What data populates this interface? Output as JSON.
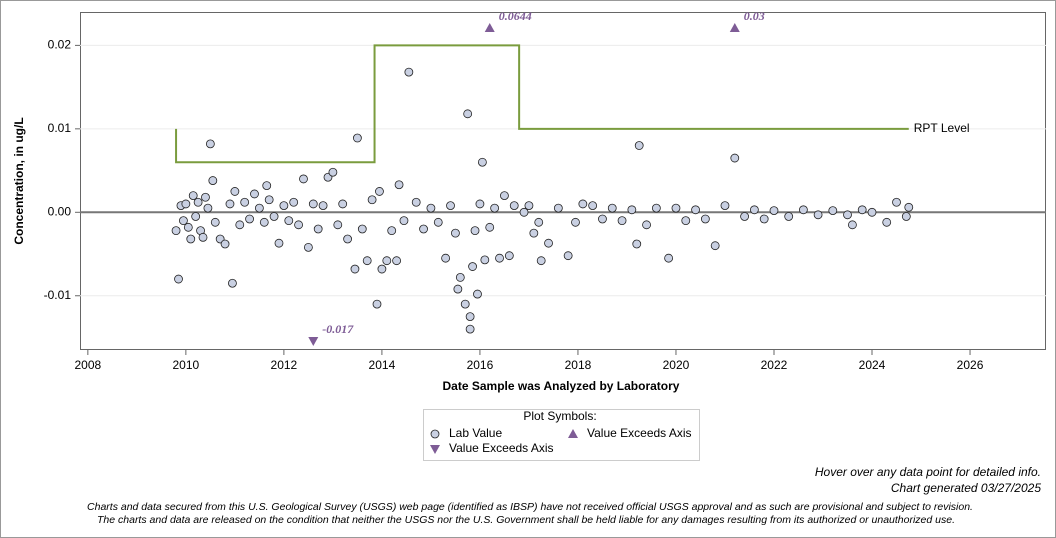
{
  "chart_data": {
    "type": "scatter",
    "y_label": "Concentration, in ug/L",
    "x_label": "Date Sample was Analyzed by Laboratory",
    "xlim": [
      2007.84,
      2027.55
    ],
    "xticks": [
      2008,
      2010,
      2012,
      2014,
      2016,
      2018,
      2020,
      2022,
      2024,
      2026
    ],
    "ylim": [
      -0.0165,
      0.024
    ],
    "yticks": [
      -0.01,
      {
        "value": 0,
        "label": "0.00"
      },
      0.01,
      0.02
    ],
    "grid": true,
    "legend_title": "Plot Symbols:",
    "series": [
      {
        "name": "Lab Value",
        "marker": "circle",
        "color": "#c9d0e2",
        "x": [
          2009.8,
          2009.85,
          2009.9,
          2009.95,
          2010.0,
          2010.05,
          2010.1,
          2010.15,
          2010.2,
          2010.25,
          2010.3,
          2010.35,
          2010.4,
          2010.45,
          2010.5,
          2010.55,
          2010.6,
          2010.7,
          2010.8,
          2010.9,
          2010.95,
          2011.0,
          2011.1,
          2011.2,
          2011.3,
          2011.4,
          2011.5,
          2011.6,
          2011.65,
          2011.7,
          2011.8,
          2011.9,
          2012.0,
          2012.1,
          2012.2,
          2012.3,
          2012.4,
          2012.5,
          2012.6,
          2012.7,
          2012.8,
          2012.9,
          2013.0,
          2013.1,
          2013.2,
          2013.3,
          2013.45,
          2013.5,
          2013.6,
          2013.7,
          2013.8,
          2013.9,
          2013.95,
          2014.0,
          2014.1,
          2014.2,
          2014.3,
          2014.35,
          2014.45,
          2014.55,
          2014.7,
          2014.85,
          2015.0,
          2015.15,
          2015.3,
          2015.4,
          2015.5,
          2015.55,
          2015.6,
          2015.7,
          2015.75,
          2015.8,
          2015.8,
          2015.85,
          2015.9,
          2015.95,
          2016.0,
          2016.05,
          2016.1,
          2016.2,
          2016.3,
          2016.4,
          2016.5,
          2016.6,
          2016.7,
          2016.9,
          2017.0,
          2017.1,
          2017.2,
          2017.25,
          2017.4,
          2017.6,
          2017.8,
          2017.95,
          2018.1,
          2018.3,
          2018.5,
          2018.7,
          2018.9,
          2019.1,
          2019.2,
          2019.25,
          2019.4,
          2019.6,
          2019.85,
          2020.0,
          2020.2,
          2020.4,
          2020.6,
          2020.8,
          2021.0,
          2021.2,
          2021.4,
          2021.6,
          2021.8,
          2022.0,
          2022.3,
          2022.6,
          2022.9,
          2023.2,
          2023.5,
          2023.6,
          2023.8,
          2024.0,
          2024.3,
          2024.5,
          2024.7,
          2024.75
        ],
        "values": [
          -0.0022,
          -0.008,
          0.0008,
          -0.001,
          0.001,
          -0.0018,
          -0.0032,
          0.002,
          -0.0005,
          0.0012,
          -0.0022,
          -0.003,
          0.0018,
          0.0005,
          0.0082,
          0.0038,
          -0.0012,
          -0.0032,
          -0.0038,
          0.001,
          -0.0085,
          0.0025,
          -0.0015,
          0.0012,
          -0.0008,
          0.0022,
          0.0005,
          -0.0012,
          0.0032,
          0.0015,
          -0.0005,
          -0.0037,
          0.0008,
          -0.001,
          0.0012,
          -0.0015,
          0.004,
          -0.0042,
          0.001,
          -0.002,
          0.0008,
          0.0042,
          0.0048,
          -0.0015,
          0.001,
          -0.0032,
          -0.0068,
          0.0089,
          -0.002,
          -0.0058,
          0.0015,
          -0.011,
          0.0025,
          -0.0068,
          -0.0058,
          -0.0022,
          -0.0058,
          0.0033,
          -0.001,
          0.0168,
          0.0012,
          -0.002,
          0.0005,
          -0.0012,
          -0.0055,
          0.0008,
          -0.0025,
          -0.0092,
          -0.0078,
          -0.011,
          0.0118,
          -0.014,
          -0.0125,
          -0.0065,
          -0.0022,
          -0.0098,
          0.001,
          0.006,
          -0.0057,
          -0.0018,
          0.0005,
          -0.0055,
          0.002,
          -0.0052,
          0.0008,
          0.0,
          0.0008,
          -0.0025,
          -0.0012,
          -0.0058,
          -0.0037,
          0.0005,
          -0.0052,
          -0.0012,
          0.001,
          0.0008,
          -0.0008,
          0.0005,
          -0.001,
          0.0003,
          -0.0038,
          0.008,
          -0.0015,
          0.0005,
          -0.0055,
          0.0005,
          -0.001,
          0.0003,
          -0.0008,
          -0.004,
          0.0008,
          0.0065,
          -0.0005,
          0.0003,
          -0.0008,
          0.0002,
          -0.0005,
          0.0003,
          -0.0003,
          0.0002,
          -0.0003,
          -0.0015,
          0.0003,
          0.0,
          -0.0012,
          0.0012,
          -0.0005,
          0.0006
        ]
      },
      {
        "name": "Value Exceeds Axis",
        "marker": "triangle-up",
        "color": "#7e5c96",
        "x": [
          2016.2,
          2021.2
        ],
        "values": [
          0.0644,
          0.03
        ],
        "value_labels": [
          "0.0644",
          "0.03"
        ]
      },
      {
        "name": "Value Exceeds Axis",
        "marker": "triangle-down",
        "color": "#7e5c96",
        "x": [
          2012.6
        ],
        "values": [
          -0.017
        ],
        "value_labels": [
          "-0.017"
        ]
      }
    ],
    "reference_line": {
      "name": "RPT Level",
      "color": "#7a9c3e",
      "x": [
        2009.8,
        2009.8,
        2013.85,
        2013.85,
        2016.8,
        2016.8,
        2024.75
      ],
      "values": [
        0.01,
        0.006,
        0.006,
        0.02,
        0.02,
        0.01,
        0.01
      ]
    },
    "notes": [
      "Hover over any data point for detailed info.",
      "Chart generated 03/27/2025"
    ],
    "disclaimer": [
      "Charts and data secured from this U.S. Geological Survey (USGS) web page (identified as IBSP) have not received official USGS approval and as such are provisional and subject to revision.",
      "The charts and data are released on the condition that neither the USGS nor the U.S. Government shall be held liable for any damages resulting from its authorized or unauthorized use."
    ]
  }
}
